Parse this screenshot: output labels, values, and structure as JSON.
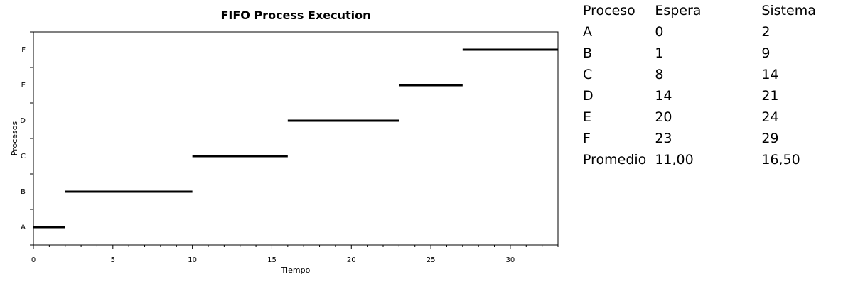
{
  "chart_data": {
    "type": "gantt",
    "title": "FIFO Process Execution",
    "xlabel": "Tiempo",
    "ylabel": "Procesos",
    "xlim": [
      0,
      33
    ],
    "xticks": [
      0,
      5,
      10,
      15,
      20,
      25,
      30
    ],
    "x_minor_step": 1,
    "categories": [
      "A",
      "B",
      "C",
      "D",
      "E",
      "F"
    ],
    "bars": [
      {
        "process": "A",
        "start": 0,
        "end": 2
      },
      {
        "process": "B",
        "start": 2,
        "end": 10
      },
      {
        "process": "C",
        "start": 10,
        "end": 16
      },
      {
        "process": "D",
        "start": 16,
        "end": 23
      },
      {
        "process": "E",
        "start": 23,
        "end": 27
      },
      {
        "process": "F",
        "start": 27,
        "end": 33
      }
    ],
    "grid": false,
    "bar_color": "#000000"
  },
  "table": {
    "headers": [
      "Proceso",
      "Espera",
      "Sistema"
    ],
    "rows": [
      [
        "A",
        "0",
        "2"
      ],
      [
        "B",
        "1",
        "9"
      ],
      [
        "C",
        "8",
        "14"
      ],
      [
        "D",
        "14",
        "21"
      ],
      [
        "E",
        "20",
        "24"
      ],
      [
        "F",
        "23",
        "29"
      ],
      [
        "Promedio",
        "11,00",
        "16,50"
      ]
    ]
  }
}
